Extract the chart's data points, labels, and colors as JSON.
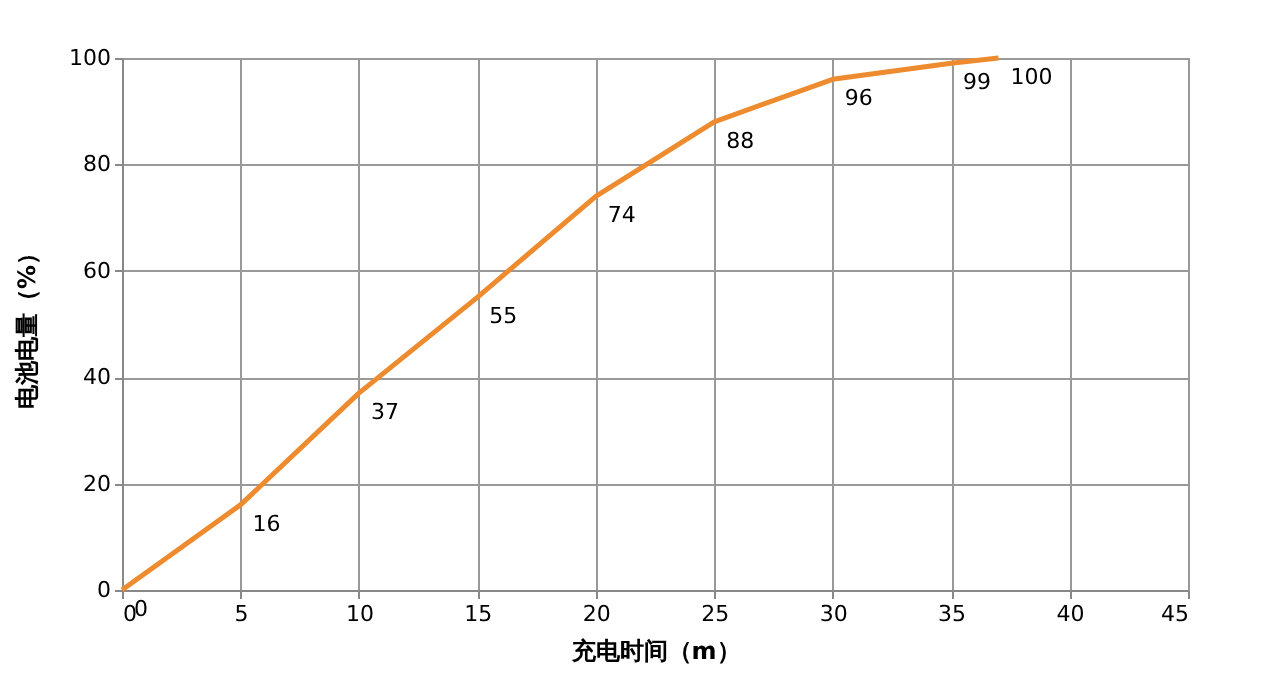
{
  "chart_data": {
    "type": "line",
    "xlabel": "充电时间（m）",
    "ylabel": "电池电量（%）",
    "x": [
      0,
      5,
      10,
      15,
      20,
      25,
      30,
      35,
      37
    ],
    "series": [
      {
        "color": "#ed8b2e",
        "values": [
          0,
          16,
          37,
          55,
          74,
          88,
          96,
          99,
          100
        ]
      }
    ],
    "xlim": [
      0,
      45
    ],
    "xticks": [
      0,
      5,
      10,
      15,
      20,
      25,
      30,
      35,
      40,
      45
    ],
    "ylim": [
      0,
      100
    ],
    "yticks": [
      0,
      20,
      40,
      60,
      80,
      100
    ],
    "grid": true,
    "data_labels": true,
    "marker": "none",
    "line_style": "solid",
    "legend": false
  }
}
